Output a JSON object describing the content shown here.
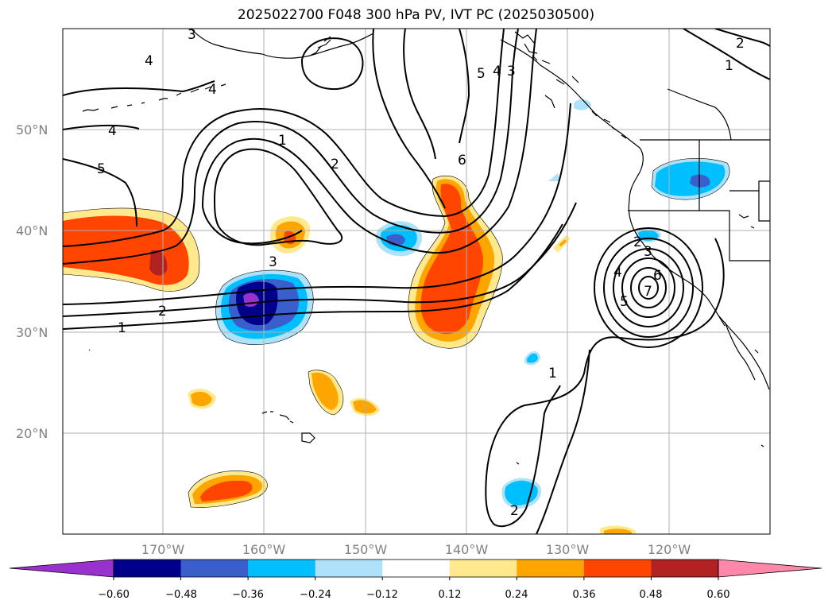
{
  "title": "2025022700 F048 300 hPa PV, IVT PC (2025030500)",
  "map": {
    "lat_labels": [
      "50°N",
      "40°N",
      "30°N",
      "20°N"
    ],
    "lon_labels": [
      "170°W",
      "160°W",
      "150°W",
      "140°W",
      "130°W",
      "120°W"
    ],
    "gridlines": true,
    "contour_field": "IVT PC",
    "shaded_field": "300 hPa PV",
    "contour_labels": [
      "3",
      "4",
      "4",
      "4",
      "5",
      "1",
      "2",
      "3",
      "2",
      "1",
      "6",
      "5",
      "4",
      "3",
      "1",
      "2",
      "1",
      "2",
      "3",
      "4",
      "5",
      "6",
      "7",
      "2"
    ]
  },
  "colorbar": {
    "ticks": [
      "−0.60",
      "−0.48",
      "−0.36",
      "−0.24",
      "−0.12",
      "0.12",
      "0.24",
      "0.36",
      "0.48",
      "0.60"
    ],
    "colors": [
      "#9932cc",
      "#00008b",
      "#3a5fcd",
      "#00bfff",
      "#aee2fa",
      "#ffffff",
      "#ffe98c",
      "#ffa500",
      "#ff4500",
      "#b22222",
      "#ff88aa"
    ],
    "extend": "both"
  }
}
